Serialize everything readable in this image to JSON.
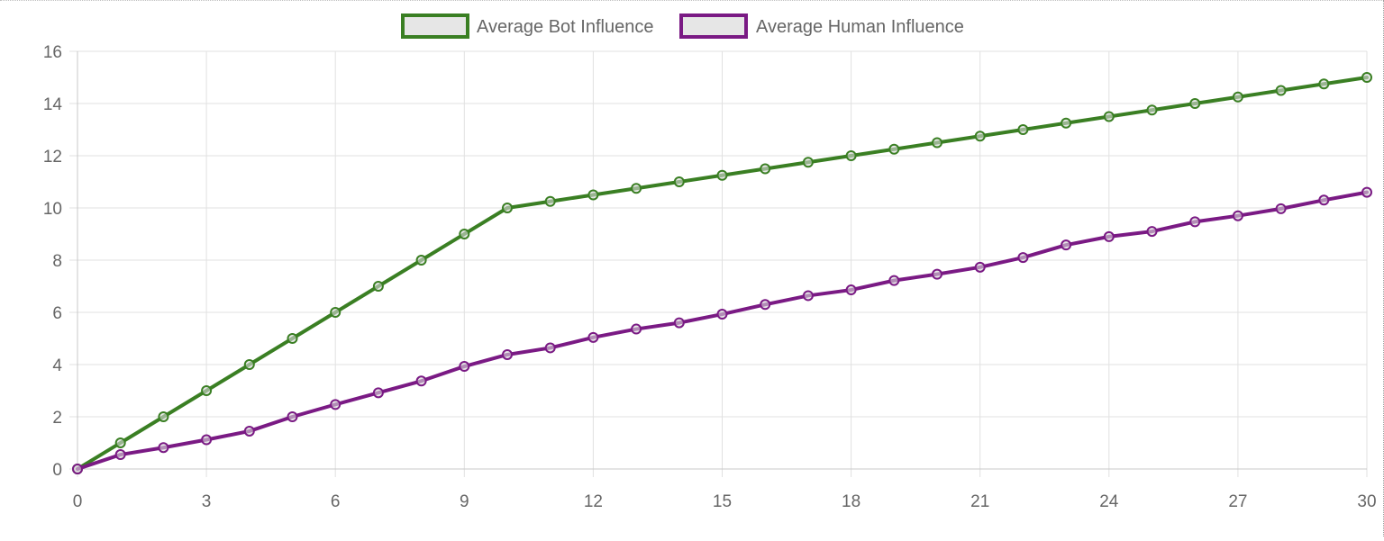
{
  "chart_data": {
    "type": "line",
    "title": "",
    "xlabel": "",
    "ylabel": "",
    "x": [
      0,
      1,
      2,
      3,
      4,
      5,
      6,
      7,
      8,
      9,
      10,
      11,
      12,
      13,
      14,
      15,
      16,
      17,
      18,
      19,
      20,
      21,
      22,
      23,
      24,
      25,
      26,
      27,
      28,
      29,
      30
    ],
    "xlim": [
      0,
      30
    ],
    "ylim": [
      0,
      16
    ],
    "x_ticks": [
      0,
      3,
      6,
      9,
      12,
      15,
      18,
      21,
      24,
      27,
      30
    ],
    "x_tick_labels": [
      "0",
      "3",
      "6",
      "9",
      "12",
      "15",
      "18",
      "21",
      "24",
      "27",
      "30"
    ],
    "y_ticks": [
      0,
      2,
      4,
      6,
      8,
      10,
      12,
      14,
      16
    ],
    "y_tick_labels": [
      "0",
      "2",
      "4",
      "6",
      "8",
      "10",
      "12",
      "14",
      "16"
    ],
    "grid": true,
    "legend_position": "top-center",
    "series": [
      {
        "name": "Average Bot Influence",
        "color": "#3a7f23",
        "values": [
          0,
          1,
          2,
          3,
          4,
          5,
          6,
          7,
          8,
          9,
          10,
          10.25,
          10.5,
          10.75,
          11,
          11.25,
          11.5,
          11.75,
          12,
          12.25,
          12.5,
          12.75,
          13,
          13.25,
          13.5,
          13.75,
          14,
          14.25,
          14.5,
          14.75,
          15
        ]
      },
      {
        "name": "Average Human Influence",
        "color": "#7a1a84",
        "values": [
          0,
          0.55,
          0.82,
          1.12,
          1.45,
          2.0,
          2.47,
          2.92,
          3.37,
          3.93,
          4.38,
          4.64,
          5.04,
          5.36,
          5.6,
          5.93,
          6.3,
          6.64,
          6.86,
          7.22,
          7.46,
          7.73,
          8.1,
          8.58,
          8.9,
          9.1,
          9.47,
          9.7,
          9.97,
          10.3,
          10.6
        ]
      }
    ]
  }
}
